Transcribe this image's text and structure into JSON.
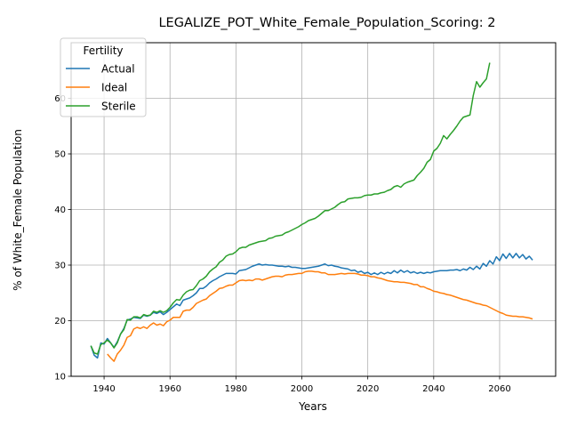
{
  "chart_data": {
    "type": "line",
    "title": "LEGALIZE_POT_White_Female_Population_Scoring: 2",
    "xlabel": "Years",
    "ylabel": "% of White_Female Population",
    "xlim": [
      1930,
      2077
    ],
    "ylim": [
      10,
      70
    ],
    "xticks": [
      1940,
      1960,
      1980,
      2000,
      2020,
      2040,
      2060
    ],
    "yticks": [
      10,
      20,
      30,
      40,
      50,
      60
    ],
    "grid": true,
    "legend": {
      "title": "Fertility",
      "placement": "top-left"
    },
    "colors": {
      "Actual": "#1f77b4",
      "Ideal": "#ff7f0e",
      "Sterile": "#2ca02c"
    },
    "series": [
      {
        "name": "Actual",
        "x": [
          1936,
          1937,
          1938,
          1939,
          1940,
          1941,
          1942,
          1943,
          1944,
          1945,
          1946,
          1947,
          1948,
          1949,
          1950,
          1951,
          1952,
          1953,
          1954,
          1955,
          1956,
          1957,
          1958,
          1959,
          1960,
          1961,
          1962,
          1963,
          1964,
          1965,
          1966,
          1967,
          1968,
          1969,
          1970,
          1971,
          1972,
          1973,
          1974,
          1975,
          1976,
          1977,
          1978,
          1979,
          1980,
          1981,
          1982,
          1983,
          1984,
          1985,
          1986,
          1987,
          1988,
          1989,
          1990,
          1991,
          1992,
          1993,
          1994,
          1995,
          1996,
          1997,
          1998,
          1999,
          2000,
          2001,
          2002,
          2003,
          2004,
          2005,
          2006,
          2007,
          2008,
          2009,
          2010,
          2011,
          2012,
          2013,
          2014,
          2015,
          2016,
          2017,
          2018,
          2019,
          2020,
          2021,
          2022,
          2023,
          2024,
          2025,
          2026,
          2027,
          2028,
          2029,
          2030,
          2031,
          2032,
          2033,
          2034,
          2035,
          2036,
          2037,
          2038,
          2039,
          2040,
          2041,
          2042,
          2043,
          2044,
          2045,
          2046,
          2047,
          2048,
          2049,
          2050,
          2051,
          2052,
          2053,
          2054,
          2055,
          2056,
          2057,
          2058,
          2059,
          2060,
          2061,
          2062,
          2063,
          2064,
          2065,
          2066,
          2067,
          2068,
          2069,
          2070
        ],
        "y": [
          15.5,
          13.8,
          13.3,
          16.0,
          15.8,
          16.8,
          16.0,
          15.2,
          16.2,
          17.6,
          18.6,
          20.1,
          20.3,
          20.6,
          20.5,
          20.4,
          21.0,
          20.8,
          21.0,
          21.5,
          21.3,
          21.6,
          21.1,
          21.5,
          22.0,
          22.5,
          23.0,
          22.7,
          23.7,
          23.9,
          24.1,
          24.5,
          25.0,
          25.8,
          25.8,
          26.2,
          26.8,
          27.2,
          27.5,
          27.9,
          28.2,
          28.5,
          28.5,
          28.5,
          28.4,
          29.0,
          29.1,
          29.2,
          29.5,
          29.8,
          30.0,
          30.2,
          30.0,
          30.1,
          30.0,
          30.0,
          29.9,
          29.8,
          29.8,
          29.7,
          29.8,
          29.6,
          29.6,
          29.5,
          29.4,
          29.4,
          29.5,
          29.6,
          29.7,
          29.8,
          30.0,
          30.2,
          29.9,
          30.0,
          29.8,
          29.7,
          29.5,
          29.4,
          29.3,
          29.0,
          29.1,
          28.7,
          28.9,
          28.5,
          28.7,
          28.3,
          28.6,
          28.3,
          28.7,
          28.4,
          28.7,
          28.5,
          29.0,
          28.6,
          29.1,
          28.7,
          29.0,
          28.6,
          28.8,
          28.5,
          28.7,
          28.5,
          28.7,
          28.6,
          28.8,
          28.9,
          29.0,
          29.0,
          29.0,
          29.1,
          29.1,
          29.2,
          29.0,
          29.3,
          29.1,
          29.6,
          29.2,
          29.8,
          29.3,
          30.3,
          29.8,
          30.8,
          30.2,
          31.5,
          30.8,
          32.0,
          31.2,
          32.1,
          31.3,
          32.1,
          31.3,
          31.9,
          31.1,
          31.6,
          30.9
        ]
      },
      {
        "name": "Ideal",
        "x": [
          1941,
          1942,
          1943,
          1944,
          1945,
          1946,
          1947,
          1948,
          1949,
          1950,
          1951,
          1952,
          1953,
          1954,
          1955,
          1956,
          1957,
          1958,
          1959,
          1960,
          1961,
          1962,
          1963,
          1964,
          1965,
          1966,
          1967,
          1968,
          1969,
          1970,
          1971,
          1972,
          1973,
          1974,
          1975,
          1976,
          1977,
          1978,
          1979,
          1980,
          1981,
          1982,
          1983,
          1984,
          1985,
          1986,
          1987,
          1988,
          1989,
          1990,
          1991,
          1992,
          1993,
          1994,
          1995,
          1996,
          1997,
          1998,
          1999,
          2000,
          2001,
          2002,
          2003,
          2004,
          2005,
          2006,
          2007,
          2008,
          2009,
          2010,
          2011,
          2012,
          2013,
          2014,
          2015,
          2016,
          2017,
          2018,
          2019,
          2020,
          2021,
          2022,
          2023,
          2024,
          2025,
          2026,
          2027,
          2028,
          2029,
          2030,
          2031,
          2032,
          2033,
          2034,
          2035,
          2036,
          2037,
          2038,
          2039,
          2040,
          2041,
          2042,
          2043,
          2044,
          2045,
          2046,
          2047,
          2048,
          2049,
          2050,
          2051,
          2052,
          2053,
          2054,
          2055,
          2056,
          2057,
          2058,
          2059,
          2060,
          2061,
          2062,
          2063,
          2064,
          2065,
          2066,
          2067,
          2068,
          2069,
          2070
        ],
        "y": [
          14.0,
          13.3,
          12.7,
          14.0,
          14.7,
          15.6,
          17.0,
          17.3,
          18.5,
          18.8,
          18.6,
          18.9,
          18.6,
          19.2,
          19.6,
          19.2,
          19.4,
          19.1,
          19.8,
          20.1,
          20.6,
          20.6,
          20.6,
          21.7,
          21.9,
          21.9,
          22.4,
          23.1,
          23.4,
          23.7,
          23.9,
          24.5,
          24.9,
          25.3,
          25.8,
          25.9,
          26.2,
          26.4,
          26.4,
          26.8,
          27.2,
          27.3,
          27.2,
          27.3,
          27.2,
          27.5,
          27.5,
          27.3,
          27.5,
          27.7,
          27.9,
          28.0,
          28.0,
          27.9,
          28.2,
          28.3,
          28.3,
          28.4,
          28.5,
          28.5,
          28.8,
          28.9,
          28.9,
          28.8,
          28.8,
          28.6,
          28.6,
          28.3,
          28.3,
          28.3,
          28.4,
          28.5,
          28.4,
          28.5,
          28.5,
          28.5,
          28.4,
          28.2,
          28.2,
          28.1,
          27.9,
          27.9,
          27.7,
          27.6,
          27.4,
          27.2,
          27.1,
          27.0,
          27.0,
          26.9,
          26.9,
          26.8,
          26.7,
          26.5,
          26.5,
          26.1,
          26.1,
          25.8,
          25.6,
          25.3,
          25.2,
          25.0,
          24.9,
          24.7,
          24.6,
          24.4,
          24.2,
          24.0,
          23.8,
          23.7,
          23.5,
          23.3,
          23.1,
          23.0,
          22.8,
          22.7,
          22.4,
          22.1,
          21.8,
          21.5,
          21.3,
          21.0,
          20.9,
          20.8,
          20.8,
          20.7,
          20.7,
          20.6,
          20.5,
          20.3
        ]
      },
      {
        "name": "Sterile",
        "x": [
          1936,
          1937,
          1938,
          1939,
          1940,
          1941,
          1942,
          1943,
          1944,
          1945,
          1946,
          1947,
          1948,
          1949,
          1950,
          1951,
          1952,
          1953,
          1954,
          1955,
          1956,
          1957,
          1958,
          1959,
          1960,
          1961,
          1962,
          1963,
          1964,
          1965,
          1966,
          1967,
          1968,
          1969,
          1970,
          1971,
          1972,
          1973,
          1974,
          1975,
          1976,
          1977,
          1978,
          1979,
          1980,
          1981,
          1982,
          1983,
          1984,
          1985,
          1986,
          1987,
          1988,
          1989,
          1990,
          1991,
          1992,
          1993,
          1994,
          1995,
          1996,
          1997,
          1998,
          1999,
          2000,
          2001,
          2002,
          2003,
          2004,
          2005,
          2006,
          2007,
          2008,
          2009,
          2010,
          2011,
          2012,
          2013,
          2014,
          2015,
          2016,
          2017,
          2018,
          2019,
          2020,
          2021,
          2022,
          2023,
          2024,
          2025,
          2026,
          2027,
          2028,
          2029,
          2030,
          2031,
          2032,
          2033,
          2034,
          2035,
          2036,
          2037,
          2038,
          2039,
          2040,
          2041,
          2042,
          2043,
          2044,
          2045,
          2046,
          2047,
          2048,
          2049,
          2050,
          2051,
          2052,
          2053,
          2054,
          2055,
          2056,
          2057
        ],
        "y": [
          15.5,
          14.2,
          14.0,
          15.7,
          16.0,
          16.5,
          16.0,
          15.1,
          16.0,
          17.6,
          18.4,
          20.2,
          20.1,
          20.7,
          20.7,
          20.5,
          21.1,
          20.9,
          21.0,
          21.7,
          21.5,
          21.8,
          21.5,
          21.8,
          22.4,
          23.2,
          23.8,
          23.7,
          24.6,
          25.2,
          25.5,
          25.6,
          26.3,
          27.2,
          27.5,
          28.0,
          28.8,
          29.3,
          29.7,
          30.5,
          30.9,
          31.6,
          31.9,
          32.0,
          32.4,
          33.0,
          33.2,
          33.2,
          33.6,
          33.8,
          34.0,
          34.2,
          34.3,
          34.4,
          34.8,
          34.9,
          35.2,
          35.3,
          35.4,
          35.8,
          36.0,
          36.3,
          36.6,
          36.9,
          37.3,
          37.6,
          38.0,
          38.2,
          38.4,
          38.8,
          39.3,
          39.8,
          39.8,
          40.1,
          40.4,
          40.9,
          41.3,
          41.4,
          41.9,
          42.0,
          42.1,
          42.1,
          42.2,
          42.5,
          42.6,
          42.6,
          42.8,
          42.8,
          43.0,
          43.1,
          43.4,
          43.6,
          44.1,
          44.3,
          44.0,
          44.6,
          44.9,
          45.1,
          45.3,
          46.1,
          46.7,
          47.4,
          48.5,
          49.0,
          50.5,
          51.0,
          51.9,
          53.3,
          52.7,
          53.5,
          54.2,
          55.0,
          55.9,
          56.6,
          56.8,
          57.0,
          60.5,
          63.0,
          62.0,
          62.8,
          63.5,
          66.4
        ]
      }
    ]
  }
}
